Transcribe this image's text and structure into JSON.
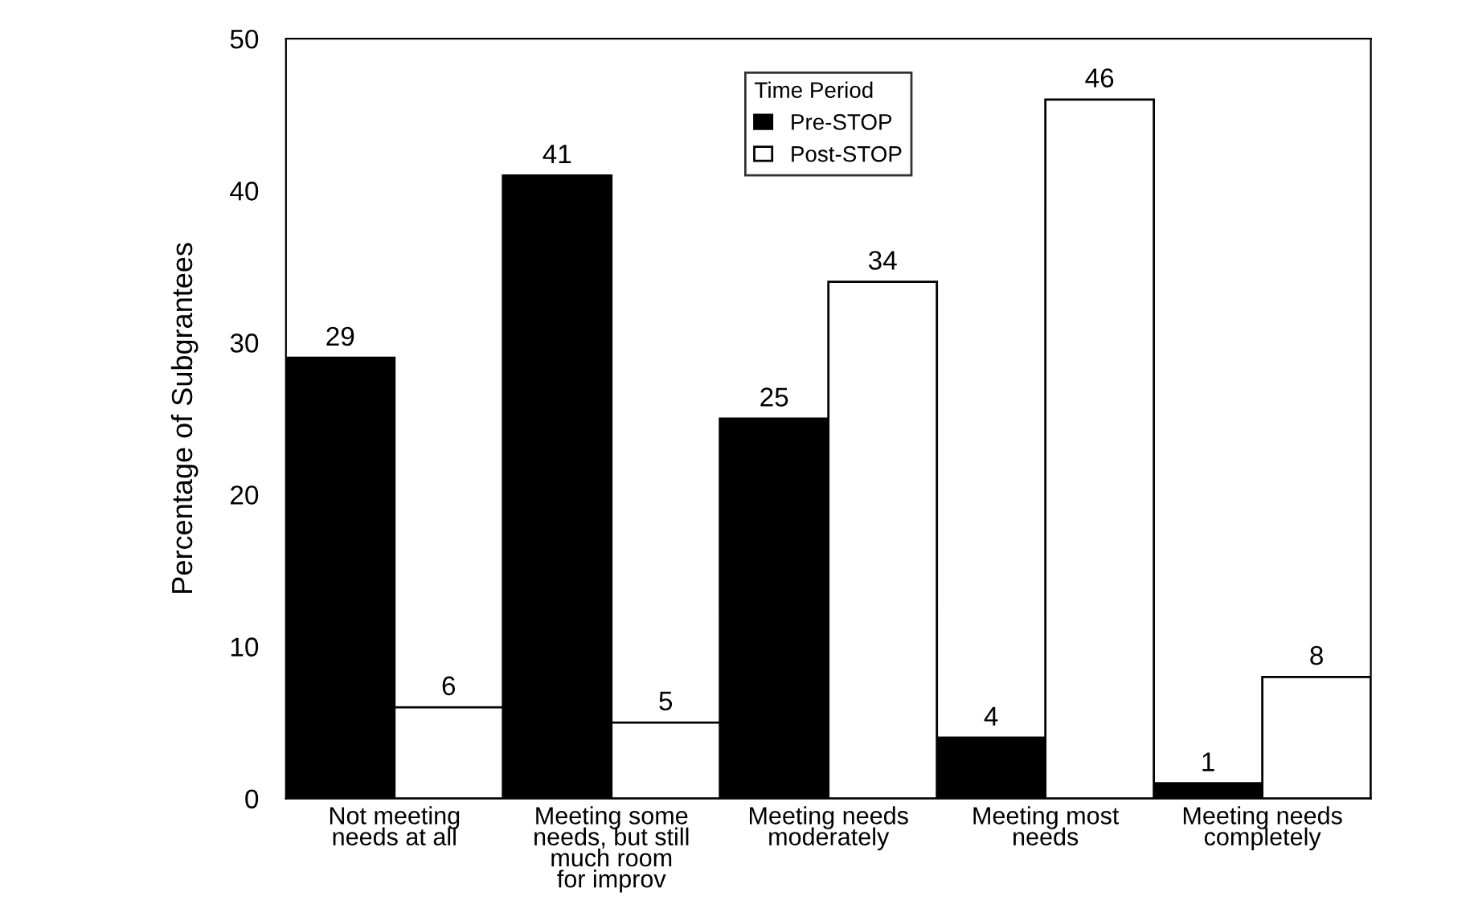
{
  "chart_data": {
    "type": "bar",
    "ylabel": "Percentage of Subgrantees",
    "legend_title": "Time Period",
    "categories": [
      "Not meeting\nneeds at all",
      "Meeting some\nneeds, but still\nmuch room\nfor improv",
      "Meeting needs\nmoderately",
      "Meeting most\nneeds",
      "Meeting needs\ncompletely"
    ],
    "series": [
      {
        "name": "Pre-STOP",
        "color": "#000000",
        "values": [
          29,
          41,
          25,
          4,
          1
        ]
      },
      {
        "name": "Post-STOP",
        "color": "#ffffff",
        "values": [
          6,
          5,
          34,
          46,
          8
        ]
      }
    ],
    "ylim": [
      0,
      50
    ],
    "yticks": [
      0,
      10,
      20,
      30,
      40,
      50
    ],
    "data_labels": true,
    "legend": "top",
    "grid": false
  }
}
